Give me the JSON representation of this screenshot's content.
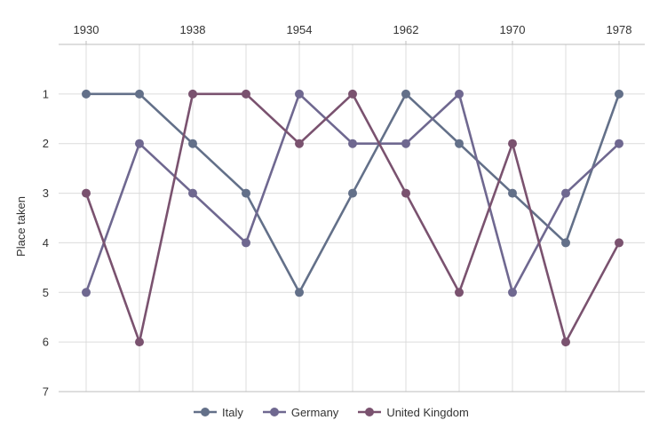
{
  "chart_data": {
    "type": "line",
    "title": "",
    "xlabel": "",
    "ylabel": "Place taken",
    "x": [
      1930,
      1934,
      1938,
      1950,
      1954,
      1958,
      1962,
      1966,
      1970,
      1974,
      1978
    ],
    "x_tick_labels": [
      "1930",
      "1938",
      "1954",
      "1962",
      "1970",
      "1978"
    ],
    "x_tick_values": [
      1930,
      1938,
      1954,
      1962,
      1970,
      1978
    ],
    "y_tick_labels": [
      "1",
      "2",
      "3",
      "4",
      "5",
      "6",
      "7"
    ],
    "y_tick_values": [
      1,
      2,
      3,
      4,
      5,
      6,
      7
    ],
    "ylim": [
      0,
      7
    ],
    "y_reversed": true,
    "x_axis_position": "top",
    "grid": true,
    "legend_position": "bottom",
    "series": [
      {
        "name": "Italy",
        "color": "#637089",
        "values": [
          1,
          1,
          2,
          3,
          5,
          3,
          1,
          2,
          3,
          4,
          1
        ]
      },
      {
        "name": "Germany",
        "color": "#6f6890",
        "values": [
          5,
          2,
          3,
          4,
          1,
          2,
          2,
          1,
          5,
          3,
          2
        ]
      },
      {
        "name": "United Kingdom",
        "color": "#7a526f",
        "values": [
          3,
          6,
          1,
          1,
          2,
          1,
          3,
          5,
          2,
          6,
          4
        ]
      }
    ]
  }
}
